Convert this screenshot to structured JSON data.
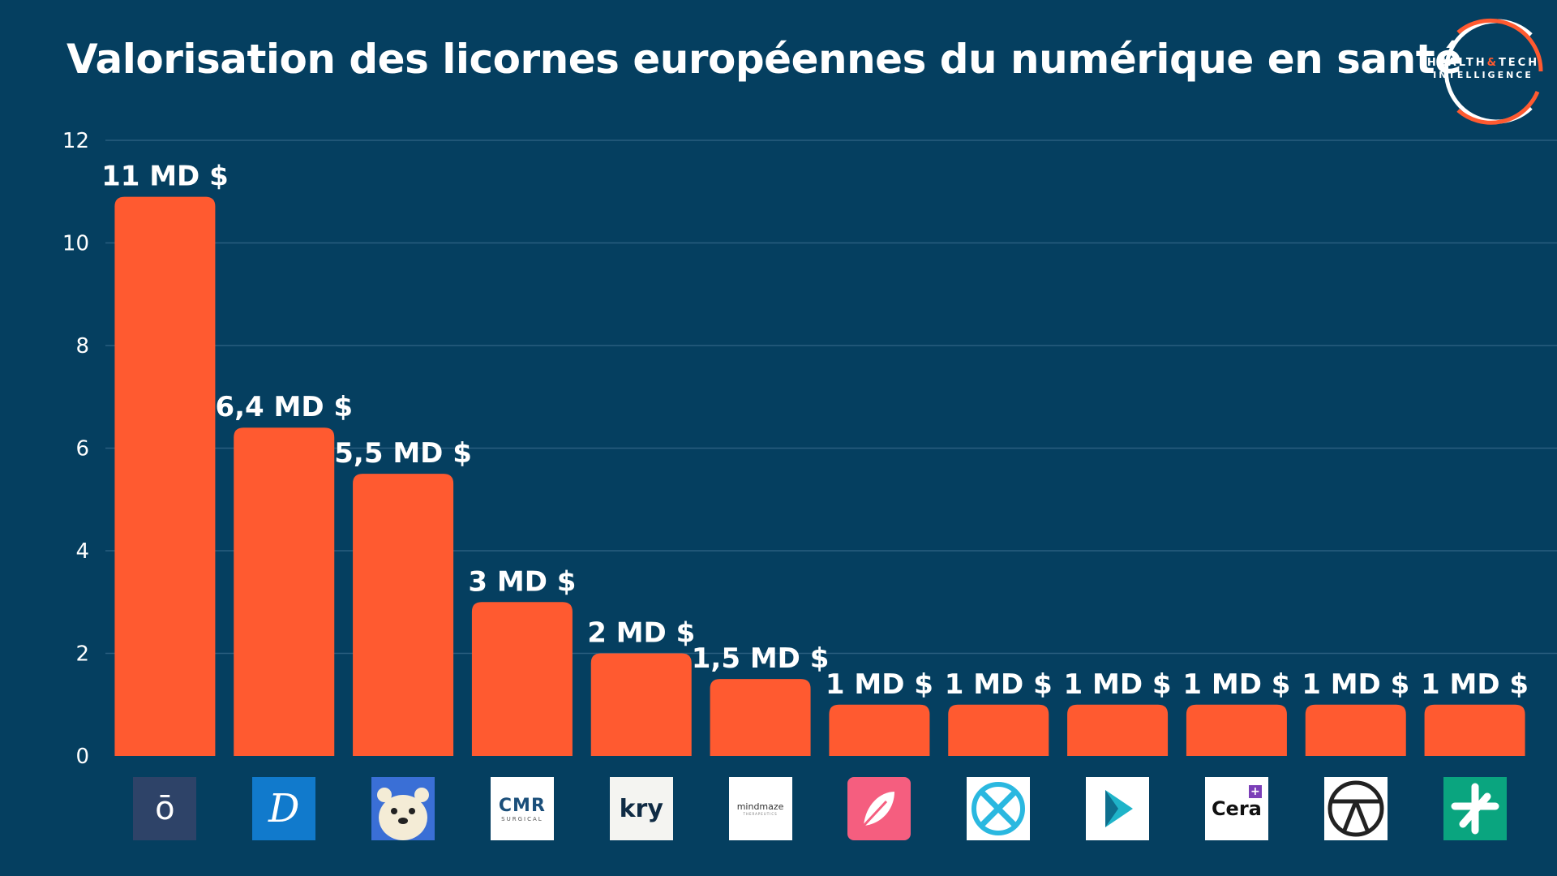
{
  "chart_data": {
    "type": "bar",
    "title": "Valorisation des licornes européennes du numérique en santé",
    "xlabel": "",
    "ylabel": "",
    "ylim": [
      0,
      12
    ],
    "yticks": [
      0,
      2,
      4,
      6,
      8,
      10,
      12
    ],
    "grid": true,
    "categories": [
      "oura-logo",
      "doctolib-logo",
      "bear-logo",
      "cmr-surgical-logo",
      "kry-logo",
      "mindmaze-logo",
      "flo-logo",
      "x-logo",
      "play-logo",
      "cera-logo",
      "person-circle-logo",
      "cross-logo"
    ],
    "values": [
      10.9,
      6.4,
      5.5,
      3,
      2,
      1.5,
      1,
      1,
      1,
      1,
      1,
      1
    ],
    "value_labels": [
      "11 MD $",
      "6,4 MD $",
      "5,5 MD $",
      "3 MD $",
      "2 MD $",
      "1,5 MD $",
      "1 MD $",
      "1 MD $",
      "1 MD $",
      "1 MD $",
      "1 MD $",
      "1 MD $"
    ],
    "colors": {
      "bar": "#ff5a30",
      "background": "#053f60",
      "grid": "#2a5f7f",
      "text": "#ffffff"
    }
  },
  "brand": {
    "line1_a": "HEALTH",
    "line1_amp": "&",
    "line1_b": "TECH",
    "line2": "INTELLIGENCE"
  },
  "logos": {
    "kry": "kry",
    "cera": "Cera",
    "cmr": "CMR",
    "cmr_sub": "SURGICAL",
    "mindmaze": "mindmaze",
    "mindmaze_sub": "THERAPEUTICS",
    "doctolib": "D",
    "oura": "ō"
  }
}
